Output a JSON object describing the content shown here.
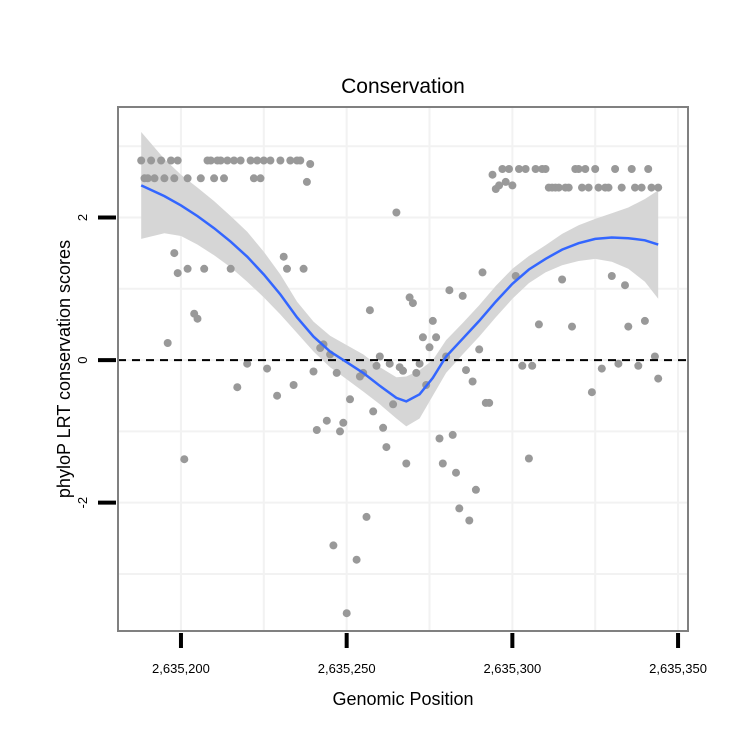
{
  "chart_data": {
    "type": "scatter",
    "title": "Conservation",
    "xlabel": "Genomic Position",
    "ylabel": "phyloP LRT conservation scores",
    "xlim": [
      2635181,
      2635353
    ],
    "ylim": [
      -3.8,
      3.55
    ],
    "x_ticks": [
      {
        "value": 2635200,
        "label": "2,635,200"
      },
      {
        "value": 2635250,
        "label": "2,635,250"
      },
      {
        "value": 2635300,
        "label": "2,635,300"
      },
      {
        "value": 2635350,
        "label": "2,635,350"
      }
    ],
    "y_ticks": [
      {
        "value": 2,
        "label": "2"
      },
      {
        "value": 0,
        "label": "0"
      },
      {
        "value": -2,
        "label": "-2"
      }
    ],
    "reference_line": {
      "y": 0,
      "style": "dashed"
    },
    "colors": {
      "points": "#999999",
      "smooth": "#3366ff",
      "ribbon": "#d6d6d6",
      "grid": "#f2f2f2",
      "border": "#808080"
    },
    "points": [
      [
        2635188,
        2.8
      ],
      [
        2635189,
        2.55
      ],
      [
        2635190,
        2.55
      ],
      [
        2635191,
        2.8
      ],
      [
        2635192,
        2.55
      ],
      [
        2635194,
        2.8
      ],
      [
        2635195,
        2.55
      ],
      [
        2635197,
        2.8
      ],
      [
        2635198,
        2.55
      ],
      [
        2635199,
        2.8
      ],
      [
        2635202,
        2.55
      ],
      [
        2635196,
        0.24
      ],
      [
        2635198,
        1.5
      ],
      [
        2635199,
        1.22
      ],
      [
        2635201,
        -1.39
      ],
      [
        2635202,
        1.28
      ],
      [
        2635204,
        0.65
      ],
      [
        2635205,
        0.58
      ],
      [
        2635206,
        2.55
      ],
      [
        2635207,
        1.28
      ],
      [
        2635208,
        2.8
      ],
      [
        2635209,
        2.8
      ],
      [
        2635210,
        2.55
      ],
      [
        2635211,
        2.8
      ],
      [
        2635212,
        2.8
      ],
      [
        2635213,
        2.55
      ],
      [
        2635214,
        2.8
      ],
      [
        2635215,
        1.28
      ],
      [
        2635216,
        2.8
      ],
      [
        2635217,
        -0.38
      ],
      [
        2635218,
        2.8
      ],
      [
        2635220,
        -0.05
      ],
      [
        2635221,
        2.8
      ],
      [
        2635222,
        2.55
      ],
      [
        2635223,
        2.8
      ],
      [
        2635224,
        2.55
      ],
      [
        2635225,
        2.8
      ],
      [
        2635226,
        -0.12
      ],
      [
        2635227,
        2.8
      ],
      [
        2635229,
        -0.5
      ],
      [
        2635230,
        2.8
      ],
      [
        2635231,
        1.45
      ],
      [
        2635232,
        1.28
      ],
      [
        2635233,
        2.8
      ],
      [
        2635234,
        -0.35
      ],
      [
        2635235,
        2.8
      ],
      [
        2635236,
        2.8
      ],
      [
        2635237,
        1.28
      ],
      [
        2635238,
        2.5
      ],
      [
        2635239,
        2.75
      ],
      [
        2635240,
        -0.16
      ],
      [
        2635241,
        -0.98
      ],
      [
        2635242,
        0.17
      ],
      [
        2635243,
        0.22
      ],
      [
        2635244,
        -0.85
      ],
      [
        2635245,
        0.08
      ],
      [
        2635246,
        -2.6
      ],
      [
        2635247,
        -0.18
      ],
      [
        2635248,
        -1.0
      ],
      [
        2635249,
        -0.88
      ],
      [
        2635250,
        -3.55
      ],
      [
        2635251,
        -0.55
      ],
      [
        2635253,
        -2.8
      ],
      [
        2635254,
        -0.23
      ],
      [
        2635255,
        -0.18
      ],
      [
        2635256,
        -2.2
      ],
      [
        2635257,
        0.7
      ],
      [
        2635258,
        -0.72
      ],
      [
        2635259,
        -0.08
      ],
      [
        2635260,
        0.05
      ],
      [
        2635261,
        -0.95
      ],
      [
        2635262,
        -1.22
      ],
      [
        2635263,
        -0.05
      ],
      [
        2635264,
        -0.62
      ],
      [
        2635265,
        2.07
      ],
      [
        2635266,
        -0.1
      ],
      [
        2635267,
        -0.15
      ],
      [
        2635268,
        -1.45
      ],
      [
        2635269,
        0.88
      ],
      [
        2635270,
        0.8
      ],
      [
        2635271,
        -0.18
      ],
      [
        2635272,
        -0.05
      ],
      [
        2635273,
        0.32
      ],
      [
        2635274,
        -0.35
      ],
      [
        2635275,
        0.18
      ],
      [
        2635276,
        0.55
      ],
      [
        2635277,
        0.32
      ],
      [
        2635278,
        -1.1
      ],
      [
        2635279,
        -1.45
      ],
      [
        2635280,
        0.05
      ],
      [
        2635281,
        0.98
      ],
      [
        2635282,
        -1.05
      ],
      [
        2635283,
        -1.58
      ],
      [
        2635284,
        -2.08
      ],
      [
        2635285,
        0.9
      ],
      [
        2635286,
        -0.14
      ],
      [
        2635287,
        -2.25
      ],
      [
        2635288,
        -0.3
      ],
      [
        2635289,
        -1.82
      ],
      [
        2635290,
        0.15
      ],
      [
        2635291,
        1.23
      ],
      [
        2635292,
        -0.6
      ],
      [
        2635293,
        -0.6
      ],
      [
        2635294,
        2.6
      ],
      [
        2635295,
        2.4
      ],
      [
        2635296,
        2.45
      ],
      [
        2635297,
        2.68
      ],
      [
        2635298,
        2.5
      ],
      [
        2635299,
        2.68
      ],
      [
        2635300,
        2.45
      ],
      [
        2635301,
        1.18
      ],
      [
        2635302,
        2.68
      ],
      [
        2635303,
        -0.08
      ],
      [
        2635304,
        2.68
      ],
      [
        2635305,
        -1.38
      ],
      [
        2635306,
        -0.08
      ],
      [
        2635307,
        2.68
      ],
      [
        2635308,
        0.5
      ],
      [
        2635309,
        2.68
      ],
      [
        2635310,
        2.68
      ],
      [
        2635311,
        2.42
      ],
      [
        2635312,
        2.42
      ],
      [
        2635313,
        2.42
      ],
      [
        2635314,
        2.42
      ],
      [
        2635315,
        1.13
      ],
      [
        2635316,
        2.42
      ],
      [
        2635317,
        2.42
      ],
      [
        2635318,
        0.47
      ],
      [
        2635319,
        2.68
      ],
      [
        2635320,
        2.68
      ],
      [
        2635321,
        2.42
      ],
      [
        2635322,
        2.68
      ],
      [
        2635323,
        2.42
      ],
      [
        2635324,
        -0.45
      ],
      [
        2635325,
        2.68
      ],
      [
        2635326,
        2.42
      ],
      [
        2635327,
        -0.12
      ],
      [
        2635328,
        2.42
      ],
      [
        2635329,
        2.42
      ],
      [
        2635330,
        1.18
      ],
      [
        2635331,
        2.68
      ],
      [
        2635332,
        -0.05
      ],
      [
        2635333,
        2.42
      ],
      [
        2635334,
        1.05
      ],
      [
        2635335,
        0.47
      ],
      [
        2635336,
        2.68
      ],
      [
        2635337,
        2.42
      ],
      [
        2635338,
        -0.08
      ],
      [
        2635339,
        2.42
      ],
      [
        2635340,
        0.55
      ],
      [
        2635341,
        2.68
      ],
      [
        2635342,
        2.42
      ],
      [
        2635343,
        0.05
      ],
      [
        2635344,
        -0.26
      ],
      [
        2635344,
        2.42
      ]
    ],
    "smooth": {
      "x": [
        2635188,
        2635195,
        2635200,
        2635205,
        2635210,
        2635215,
        2635220,
        2635225,
        2635230,
        2635235,
        2635240,
        2635245,
        2635250,
        2635255,
        2635260,
        2635265,
        2635268,
        2635272,
        2635276,
        2635280,
        2635285,
        2635290,
        2635295,
        2635300,
        2635305,
        2635310,
        2635315,
        2635320,
        2635325,
        2635330,
        2635335,
        2635340,
        2635344
      ],
      "y": [
        2.45,
        2.3,
        2.17,
        2.02,
        1.85,
        1.66,
        1.45,
        1.2,
        0.92,
        0.6,
        0.33,
        0.12,
        -0.03,
        -0.18,
        -0.36,
        -0.53,
        -0.58,
        -0.48,
        -0.25,
        0.05,
        0.3,
        0.55,
        0.82,
        1.07,
        1.27,
        1.42,
        1.55,
        1.64,
        1.7,
        1.72,
        1.71,
        1.68,
        1.62
      ],
      "lower": [
        1.7,
        1.78,
        1.74,
        1.62,
        1.47,
        1.3,
        1.1,
        0.88,
        0.64,
        0.38,
        0.12,
        -0.1,
        -0.27,
        -0.44,
        -0.62,
        -0.82,
        -0.93,
        -0.82,
        -0.5,
        -0.18,
        0.08,
        0.33,
        0.6,
        0.86,
        1.08,
        1.23,
        1.33,
        1.39,
        1.42,
        1.38,
        1.28,
        1.1,
        0.86
      ],
      "upper": [
        3.2,
        2.82,
        2.6,
        2.42,
        2.23,
        2.02,
        1.8,
        1.52,
        1.2,
        0.82,
        0.54,
        0.34,
        0.21,
        0.08,
        -0.1,
        -0.24,
        -0.23,
        -0.14,
        0.0,
        0.28,
        0.52,
        0.77,
        1.04,
        1.28,
        1.46,
        1.61,
        1.77,
        1.89,
        1.98,
        2.06,
        2.14,
        2.26,
        2.38
      ]
    }
  }
}
